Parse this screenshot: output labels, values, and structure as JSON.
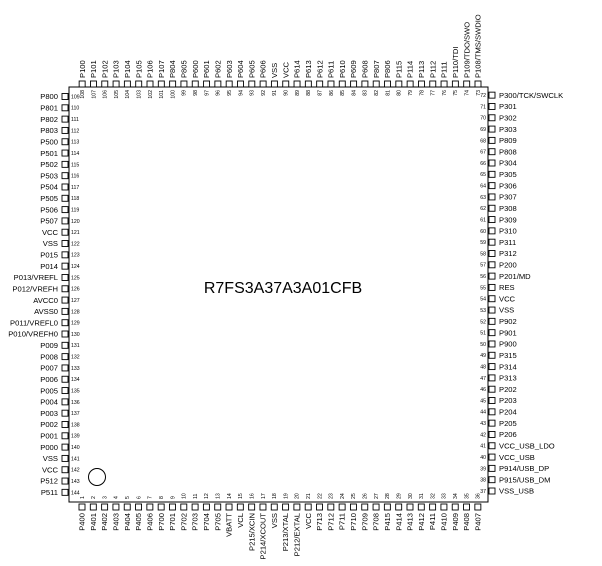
{
  "chip": {
    "part_number": "R7FS3A37A3A01CFB",
    "pin1_marker": "circle"
  },
  "pins": {
    "bottom": [
      "P400",
      "P401",
      "P402",
      "P403",
      "P404",
      "P405",
      "P406",
      "P700",
      "P701",
      "P702",
      "P703",
      "P704",
      "P705",
      "VBATT",
      "VCL",
      "P215/XCIN",
      "P214/XCOUT",
      "VSS",
      "P213/XTAL",
      "P212/EXTAL",
      "VCC",
      "P713",
      "P712",
      "P711",
      "P710",
      "P709",
      "P708",
      "P415",
      "P414",
      "P413",
      "P412",
      "P411",
      "P410",
      "P409",
      "P408",
      "P407"
    ],
    "right": [
      "VSS_USB",
      "P915/USB_DM",
      "P914/USB_DP",
      "VCC_USB",
      "VCC_USB_LDO",
      "P206",
      "P205",
      "P204",
      "P203",
      "P202",
      "P313",
      "P314",
      "P315",
      "P900",
      "P901",
      "P902",
      "VSS",
      "VCC",
      "RES",
      "P201/MD",
      "P200",
      "P312",
      "P311",
      "P310",
      "P309",
      "P308",
      "P307",
      "P306",
      "P305",
      "P304",
      "P808",
      "P809",
      "P303",
      "P302",
      "P301",
      "P300/TCK/SWCLK"
    ],
    "top": [
      "P108/TMS/SWDIO",
      "P109/TDO/SWO",
      "P110/TDI",
      "P111",
      "P112",
      "P113",
      "P114",
      "P115",
      "P806",
      "P807",
      "P608",
      "P609",
      "P610",
      "P611",
      "P612",
      "P613",
      "P614",
      "VCC",
      "VSS",
      "P606",
      "P605",
      "P604",
      "P603",
      "P602",
      "P601",
      "P600",
      "P805",
      "P804",
      "P107",
      "P106",
      "P105",
      "P104",
      "P103",
      "P102",
      "P101",
      "P100"
    ],
    "left": [
      "P800",
      "P801",
      "P802",
      "P803",
      "P500",
      "P501",
      "P502",
      "P503",
      "P504",
      "P505",
      "P506",
      "P507",
      "VCC",
      "VSS",
      "P015",
      "P014",
      "P013/VREFL",
      "P012/VREFH",
      "AVCC0",
      "AVSS0",
      "P011/VREFL0",
      "P010/VREFH0",
      "P009",
      "P008",
      "P007",
      "P006",
      "P005",
      "P004",
      "P003",
      "P002",
      "P001",
      "P000",
      "VSS",
      "VCC",
      "P512",
      "P511"
    ]
  },
  "pin_numbering": {
    "bottom_start": 1,
    "right_start": 37,
    "top_start": 73,
    "left_start": 109
  }
}
